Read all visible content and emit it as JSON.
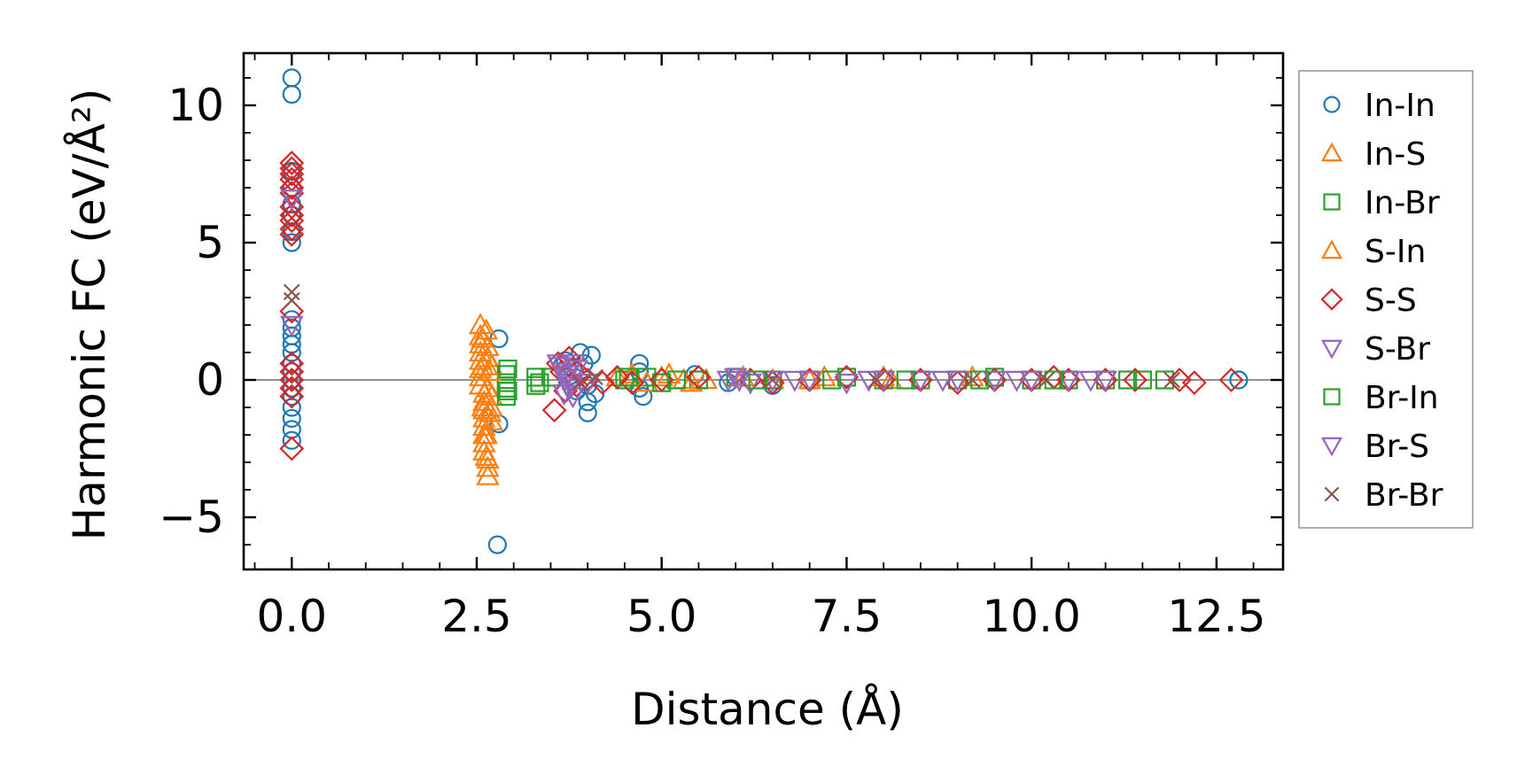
{
  "chart_data": {
    "type": "scatter",
    "title": "",
    "xlabel": "Distance (Å)",
    "ylabel": "Harmonic FC (eV/Å²)",
    "xlim": [
      -0.65,
      13.4
    ],
    "ylim": [
      -6.9,
      11.9
    ],
    "xticks": [
      0.0,
      2.5,
      5.0,
      7.5,
      10.0,
      12.5
    ],
    "xtick_labels": [
      "0.0",
      "2.5",
      "5.0",
      "7.5",
      "10.0",
      "12.5"
    ],
    "yticks": [
      -5,
      0,
      5,
      10
    ],
    "ytick_labels": [
      "−5",
      "0",
      "5",
      "10"
    ],
    "grid": false,
    "zero_line": true,
    "legend_position": "outside-right",
    "series": [
      {
        "name": "In-In",
        "marker": "circle",
        "color": "#1f77b4",
        "x": [
          0,
          0,
          0,
          0,
          0,
          0,
          0,
          0,
          0,
          0,
          0,
          0,
          0,
          0,
          0,
          0,
          0,
          0,
          0,
          0,
          0,
          0,
          2.8,
          2.8,
          2.78,
          3.65,
          3.7,
          3.8,
          3.85,
          3.9,
          3.95,
          4.0,
          4.0,
          4.0,
          4.05,
          4.1,
          4.7,
          4.7,
          4.7,
          4.75,
          5.45,
          5.9,
          6.0,
          6.5,
          12.8
        ],
        "y": [
          11.0,
          10.4,
          7.6,
          7.0,
          6.4,
          6.0,
          5.4,
          5.0,
          2.2,
          1.9,
          1.6,
          1.3,
          1.0,
          0.6,
          0.3,
          0,
          -0.3,
          -0.6,
          -1.0,
          -1.4,
          -1.8,
          -2.2,
          1.5,
          -1.6,
          -6.0,
          0.5,
          0.7,
          0.4,
          -0.4,
          1.0,
          0.6,
          -0.2,
          -0.8,
          -1.2,
          0.9,
          -0.5,
          0.6,
          0.3,
          -0.3,
          -0.6,
          0.2,
          -0.1,
          0.1,
          -0.2,
          0
        ]
      },
      {
        "name": "In-S",
        "marker": "triangle-up",
        "color": "#ff7f0e",
        "x": [
          2.55,
          2.55,
          2.55,
          2.55,
          2.55,
          2.55,
          2.55,
          2.55,
          2.6,
          2.6,
          2.6,
          2.6,
          2.6,
          2.6,
          2.6,
          2.6,
          2.65,
          2.65,
          2.65,
          2.65,
          2.65,
          2.65,
          2.7,
          2.7,
          2.7,
          2.7,
          4.4,
          4.6,
          4.8,
          5.0,
          5.1,
          5.4,
          5.6,
          6.1,
          6.5,
          7.2,
          8.1,
          9.2
        ],
        "y": [
          2.0,
          1.6,
          1.3,
          1.0,
          0.7,
          0.4,
          0.1,
          -0.2,
          -0.5,
          -0.8,
          -1.1,
          -1.4,
          -1.7,
          -2.0,
          -2.3,
          -2.6,
          -2.9,
          -3.2,
          -3.5,
          1.2,
          0.8,
          -0.3,
          -0.6,
          -1.0,
          0.5,
          -1.5,
          0.1,
          0.2,
          -0.1,
          0.1,
          0.2,
          -0.1,
          0,
          0.1,
          0,
          0.1,
          0,
          0.1
        ]
      },
      {
        "name": "In-Br",
        "marker": "square",
        "color": "#2ca02c",
        "x": [
          2.9,
          2.9,
          2.9,
          2.9,
          3.3,
          3.3,
          3.5,
          4.5,
          4.8,
          5.0,
          5.5,
          6.0,
          6.5,
          7.0,
          7.5,
          8.0,
          8.5,
          9.0,
          9.5,
          10.0,
          10.5,
          11.0,
          11.5,
          11.8
        ],
        "y": [
          0.2,
          -0.1,
          -0.3,
          -0.6,
          0.1,
          -0.2,
          0.1,
          0,
          0.1,
          -0.1,
          0,
          0.1,
          0,
          0,
          0.1,
          0,
          0,
          0,
          0.1,
          0,
          0,
          0,
          0,
          0
        ]
      },
      {
        "name": "S-In",
        "marker": "triangle-up",
        "color": "#ff7f0e",
        "x": [
          2.58,
          2.58,
          2.58,
          2.63,
          2.63,
          2.63,
          2.68,
          2.68,
          4.6,
          5.3,
          6.1,
          7.0,
          8.0
        ],
        "y": [
          1.5,
          0.5,
          -1.0,
          1.8,
          -2.0,
          -2.8,
          0.3,
          -1.2,
          0.1,
          0,
          0.1,
          0,
          0.1
        ]
      },
      {
        "name": "S-S",
        "marker": "diamond",
        "color": "#d62728",
        "x": [
          0,
          0,
          0,
          0,
          0,
          0,
          0,
          0,
          0,
          0,
          0,
          0,
          0,
          0,
          0,
          0,
          0,
          0,
          3.55,
          3.6,
          3.65,
          3.7,
          3.75,
          3.8,
          3.85,
          3.9,
          4.0,
          4.2,
          4.4,
          4.6,
          5.0,
          5.5,
          6.2,
          6.5,
          7.0,
          7.5,
          8.0,
          8.5,
          9.0,
          9.5,
          10.0,
          10.3,
          10.5,
          11.0,
          11.4,
          12.0,
          12.2,
          12.7
        ],
        "y": [
          7.9,
          7.7,
          7.5,
          7.3,
          7.0,
          6.8,
          6.3,
          6.0,
          5.8,
          5.5,
          5.3,
          2.5,
          0.6,
          0.3,
          0,
          -0.3,
          -0.6,
          -2.5,
          -1.1,
          0.6,
          0.3,
          -0.4,
          0.8,
          0.4,
          -0.2,
          0.2,
          0,
          -0.1,
          0.1,
          -0.1,
          0,
          0.1,
          0,
          -0.1,
          0,
          0.1,
          0,
          0,
          -0.1,
          0,
          0,
          0.1,
          0,
          0,
          0,
          0,
          -0.1,
          0
        ]
      },
      {
        "name": "S-Br",
        "marker": "triangle-down",
        "color": "#9467bd",
        "x": [
          0,
          0,
          3.6,
          3.65,
          3.7,
          3.75,
          3.8,
          3.85,
          4.0,
          5.9,
          6.0,
          6.2,
          6.5,
          7.0,
          7.5,
          8.0,
          8.5,
          9.0,
          9.5,
          10.0,
          10.5,
          11.0
        ],
        "y": [
          6.6,
          2.0,
          0.6,
          0.3,
          0,
          -0.3,
          -0.6,
          0.4,
          -0.1,
          0,
          0.1,
          -0.1,
          0,
          0,
          -0.1,
          0,
          0,
          0,
          0,
          0,
          0,
          0
        ]
      },
      {
        "name": "Br-In",
        "marker": "square",
        "color": "#2ca02c",
        "x": [
          2.92,
          2.92,
          3.35,
          4.55,
          5.2,
          6.3,
          7.3,
          8.3,
          9.3,
          10.3,
          11.3
        ],
        "y": [
          0.4,
          -0.4,
          -0.1,
          0.1,
          0,
          0,
          0,
          0,
          0,
          0,
          0
        ]
      },
      {
        "name": "Br-S",
        "marker": "triangle-down",
        "color": "#9467bd",
        "x": [
          3.62,
          3.68,
          3.72,
          3.78,
          3.82,
          6.05,
          6.8,
          7.8,
          8.8,
          9.8,
          10.8
        ],
        "y": [
          0.5,
          -0.5,
          0.2,
          -0.2,
          0.6,
          0,
          0,
          0,
          0,
          0,
          0
        ]
      },
      {
        "name": "Br-Br",
        "marker": "x",
        "color": "#8c564b",
        "x": [
          0,
          0,
          3.9,
          4.1,
          6.5,
          7.9,
          9.2,
          10.2,
          11.9
        ],
        "y": [
          3.2,
          2.9,
          -0.1,
          0.1,
          0,
          0,
          0,
          0,
          0
        ]
      }
    ]
  }
}
